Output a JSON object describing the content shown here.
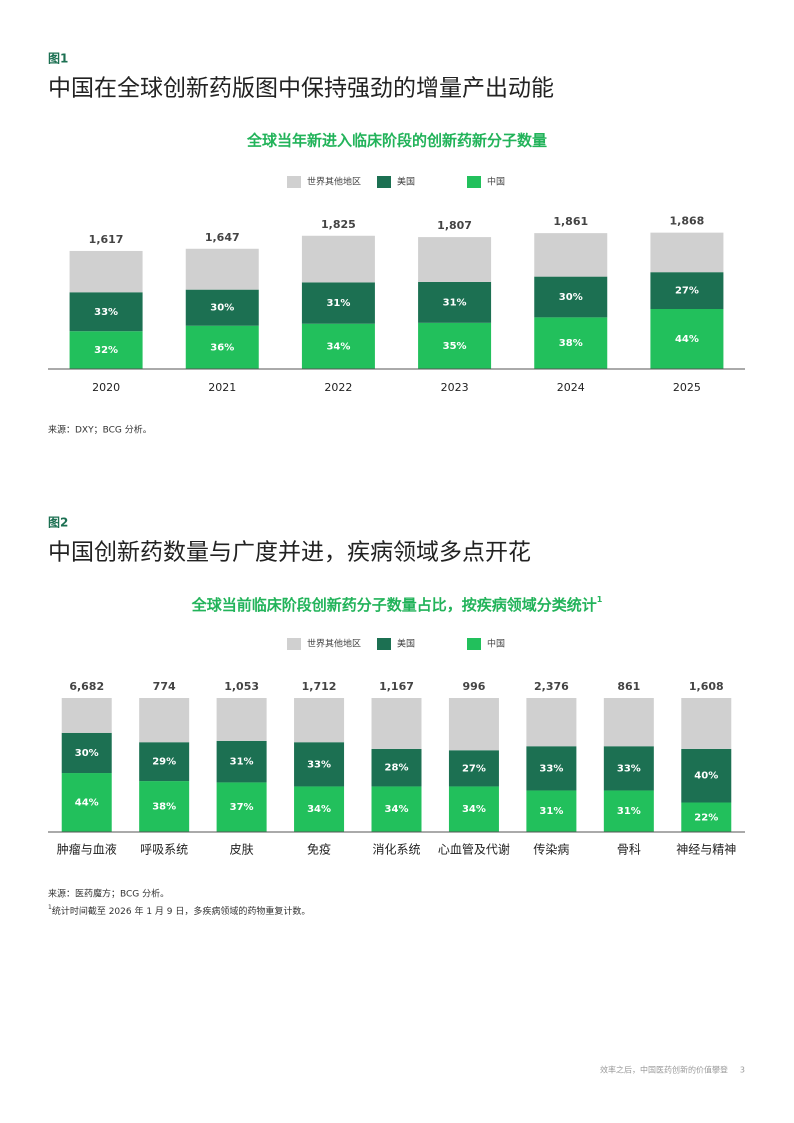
{
  "chart_data": [
    {
      "type": "bar",
      "figure_label": "图1",
      "heading": "中国在全球创新药版图中保持强劲的增量产出动能",
      "title": "全球当年新进入临床阶段的创新药新分子数量",
      "categories": [
        "2020",
        "2021",
        "2022",
        "2023",
        "2024",
        "2025"
      ],
      "totals": [
        1617,
        1647,
        1825,
        1807,
        1861,
        1868
      ],
      "total_labels": [
        "1,617",
        "1,647",
        "1,825",
        "1,807",
        "1,861",
        "1,868"
      ],
      "scale_by_total": true,
      "ylim": [
        0,
        2000
      ],
      "series": [
        {
          "name": "世界其他地区",
          "color": "#d0d0d0",
          "values": [
            35,
            34,
            35,
            34,
            32,
            29
          ]
        },
        {
          "name": "美国",
          "color": "#1c7052",
          "values": [
            33,
            30,
            31,
            31,
            30,
            27
          ],
          "value_labels": [
            "33%",
            "30%",
            "31%",
            "31%",
            "30%",
            "27%"
          ]
        },
        {
          "name": "中国",
          "color": "#22c05c",
          "values": [
            32,
            36,
            34,
            35,
            38,
            44
          ],
          "value_labels": [
            "32%",
            "36%",
            "34%",
            "35%",
            "38%",
            "44%"
          ]
        }
      ],
      "source": "来源：DXY；BCG 分析。"
    },
    {
      "type": "bar",
      "figure_label": "图2",
      "heading": "中国创新药数量与广度并进，疾病领域多点开花",
      "title": "全球当前临床阶段创新药分子数量占比，按疾病领域分类统计",
      "title_note": "1",
      "categories": [
        "肿瘤与血液",
        "呼吸系统",
        "皮肤",
        "免疫",
        "消化系统",
        "心血管及代谢",
        "传染病",
        "骨科",
        "神经与精神"
      ],
      "totals": [
        6682,
        774,
        1053,
        1712,
        1167,
        996,
        2376,
        861,
        1608
      ],
      "total_labels": [
        "6,682",
        "774",
        "1,053",
        "1,712",
        "1,167",
        "996",
        "2,376",
        "861",
        "1,608"
      ],
      "scale_by_total": false,
      "ylim": [
        0,
        100
      ],
      "series": [
        {
          "name": "世界其他地区",
          "color": "#d0d0d0",
          "values": [
            26,
            33,
            32,
            33,
            38,
            39,
            36,
            36,
            38
          ]
        },
        {
          "name": "美国",
          "color": "#1c7052",
          "values": [
            30,
            29,
            31,
            33,
            28,
            27,
            33,
            33,
            40
          ],
          "value_labels": [
            "30%",
            "29%",
            "31%",
            "33%",
            "28%",
            "27%",
            "33%",
            "33%",
            "40%"
          ]
        },
        {
          "name": "中国",
          "color": "#22c05c",
          "values": [
            44,
            38,
            37,
            34,
            34,
            34,
            31,
            31,
            22
          ],
          "value_labels": [
            "44%",
            "38%",
            "37%",
            "34%",
            "34%",
            "34%",
            "31%",
            "31%",
            "22%"
          ]
        }
      ],
      "source": "来源：医药魔方；BCG 分析。",
      "note_mark": "1",
      "note": "统计时间截至 2026 年 1 月 9 日，多疾病领域的药物重复计数。"
    }
  ],
  "footer": {
    "text": "效率之后，中国医药创新的价值攀登",
    "page": "3"
  }
}
